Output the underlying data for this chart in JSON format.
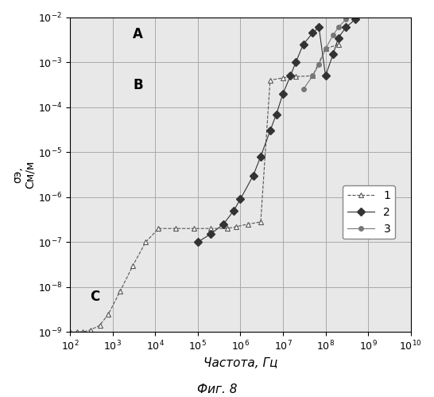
{
  "ylabel_line1": "σэ,",
  "ylabel_line2": "См/м",
  "xlabel": "Частота, Гц",
  "fig_label": "Фиг. 8",
  "label_A": "A",
  "label_B": "B",
  "label_C": "C",
  "xlim": [
    100,
    10000000000.0
  ],
  "ylim": [
    1e-09,
    0.01
  ],
  "s1_x": [
    100,
    150,
    200,
    300,
    500,
    800,
    1500,
    3000,
    6000,
    12000,
    30000,
    80000,
    200000,
    500000,
    800000,
    1500000,
    3000000,
    5000000,
    10000000,
    20000000,
    50000000,
    100000000,
    200000000
  ],
  "s1_y": [
    1e-09,
    1e-09,
    1e-09,
    1.1e-09,
    1.4e-09,
    2.5e-09,
    8e-09,
    3e-08,
    1e-07,
    2e-07,
    2e-07,
    2e-07,
    2e-07,
    2e-07,
    2.2e-07,
    2.5e-07,
    2.8e-07,
    0.0004,
    0.00045,
    0.00048,
    0.0005,
    0.002,
    0.0025
  ],
  "s2_x": [
    100000,
    200000,
    400000,
    700000,
    1000000,
    2000000,
    3000000,
    5000000,
    7000000,
    10000000,
    15000000,
    20000000,
    30000000,
    50000000,
    70000000,
    100000000,
    150000000,
    200000000,
    300000000,
    500000000,
    700000000
  ],
  "s2_y": [
    1e-07,
    1.5e-07,
    2.5e-07,
    5e-07,
    9e-07,
    3e-06,
    8e-06,
    3e-05,
    7e-05,
    0.0002,
    0.0005,
    0.001,
    0.0025,
    0.0045,
    0.006,
    0.0005,
    0.0015,
    0.0035,
    0.006,
    0.009,
    0.012
  ],
  "s3_x": [
    30000000,
    50000000,
    70000000,
    100000000,
    150000000,
    200000000,
    300000000,
    400000000,
    500000000,
    700000000,
    1000000000,
    2000000000,
    3000000000,
    5000000000
  ],
  "s3_y": [
    0.00025,
    0.0005,
    0.0009,
    0.002,
    0.004,
    0.006,
    0.009,
    0.012,
    0.015,
    0.02,
    0.028,
    0.04,
    0.055,
    0.07
  ],
  "s1_color": "#555555",
  "s2_color": "#333333",
  "s3_color": "#777777",
  "line_color": "#555555",
  "bg_color": "#e8e8e8",
  "grid_color": "#aaaaaa"
}
